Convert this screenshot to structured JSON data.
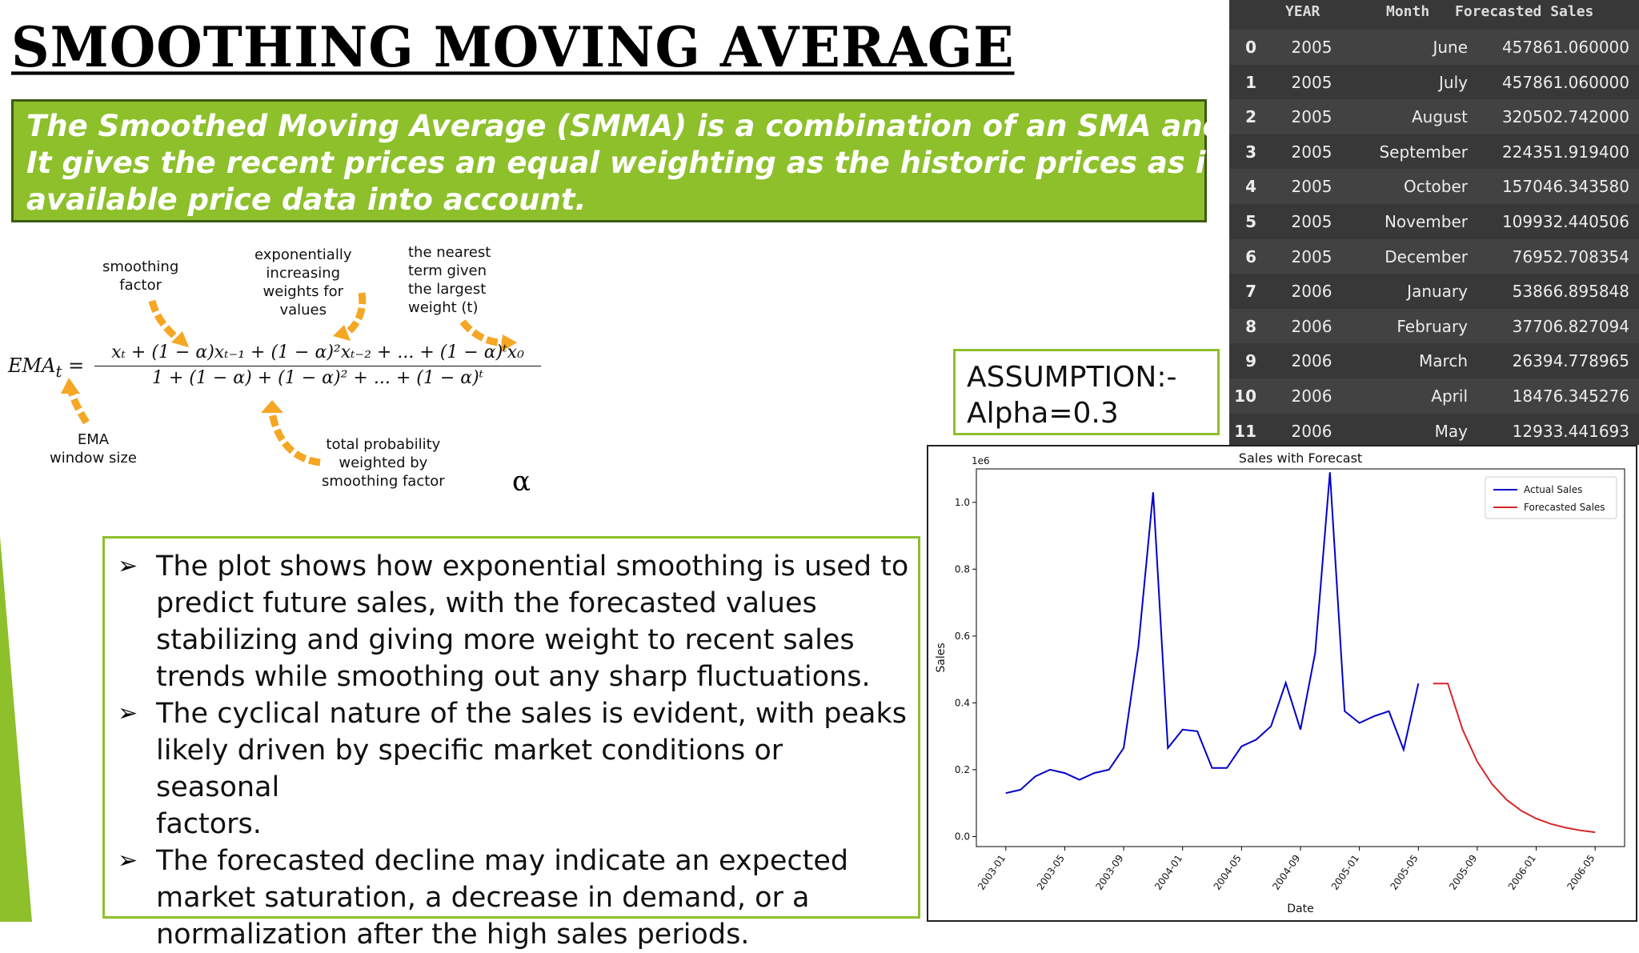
{
  "title": "SMOOTHING MOVING AVERAGE",
  "intro": {
    "lines": [
      "The Smoothed Moving Average (SMMA) is a combination of an SMA and an EMA.",
      "It gives the recent prices an equal weighting as the historic prices as it takes all",
      "available price data into account."
    ]
  },
  "formula": {
    "lhs": "EMA",
    "lhs_sub": "t",
    "numerator": "x",
    "numerator_full": "xₜ + (1 − α)xₜ₋₁ + (1 − α)²xₜ₋₂ + ... + (1 − α)ᵗx₀",
    "denominator_full": "1 + (1 − α) + (1 − α)² + ... + (1 − α)ᵗ",
    "alpha_symbol": "α",
    "annotations": {
      "smoothing_factor": [
        "smoothing",
        "factor"
      ],
      "exponential_weights": [
        "exponentially",
        "increasing",
        "weights for",
        "values"
      ],
      "nearest_term": [
        "the nearest",
        "term given",
        "the largest",
        "weight (t)"
      ],
      "ema_window": [
        "EMA",
        "window size"
      ],
      "total_probability": [
        "total probability",
        "weighted by",
        "smoothing factor"
      ]
    },
    "arrow_color": "#f5a623"
  },
  "assumption": {
    "line1": "ASSUMPTION:-",
    "line2": "Alpha=0.3"
  },
  "bullets": [
    "The plot shows how exponential smoothing is used to predict future sales, with the forecasted values stabilizing and giving more weight to recent sales trends while smoothing out any sharp fluctuations.",
    "The cyclical nature of the sales is evident, with peaks likely driven by specific market conditions or seasonal factors.",
    "The forecasted decline may indicate an expected market saturation, a decrease in demand, or a normalization after the high sales periods."
  ],
  "bullet_lines": [
    [
      "The plot shows how exponential smoothing is used to",
      "predict future sales, with the forecasted values",
      "stabilizing and giving more weight to recent sales",
      "trends while smoothing out any sharp fluctuations."
    ],
    [
      "The cyclical nature of the sales is evident, with peaks",
      "likely driven by specific market conditions or seasonal",
      "factors."
    ],
    [
      "The forecasted decline may indicate an expected",
      "market saturation, a decrease in demand, or a",
      "normalization after the high sales periods."
    ]
  ],
  "bullet_marker": "➢",
  "table": {
    "headers": [
      "YEAR",
      "Month",
      "Forecasted Sales"
    ],
    "rows": [
      {
        "idx": "0",
        "year": "2005",
        "month": "June",
        "forecast": "457861.060000"
      },
      {
        "idx": "1",
        "year": "2005",
        "month": "July",
        "forecast": "457861.060000"
      },
      {
        "idx": "2",
        "year": "2005",
        "month": "August",
        "forecast": "320502.742000"
      },
      {
        "idx": "3",
        "year": "2005",
        "month": "September",
        "forecast": "224351.919400"
      },
      {
        "idx": "4",
        "year": "2005",
        "month": "October",
        "forecast": "157046.343580"
      },
      {
        "idx": "5",
        "year": "2005",
        "month": "November",
        "forecast": "109932.440506"
      },
      {
        "idx": "6",
        "year": "2005",
        "month": "December",
        "forecast": "76952.708354"
      },
      {
        "idx": "7",
        "year": "2006",
        "month": "January",
        "forecast": "53866.895848"
      },
      {
        "idx": "8",
        "year": "2006",
        "month": "February",
        "forecast": "37706.827094"
      },
      {
        "idx": "9",
        "year": "2006",
        "month": "March",
        "forecast": "26394.778965"
      },
      {
        "idx": "10",
        "year": "2006",
        "month": "April",
        "forecast": "18476.345276"
      },
      {
        "idx": "11",
        "year": "2006",
        "month": "May",
        "forecast": "12933.441693"
      }
    ]
  },
  "colors": {
    "accent_green": "#8dc02b",
    "dark_green": "#3c5a12",
    "table_bg": "#383838",
    "table_alt": "#424242",
    "actual": "#0000cc",
    "forecast": "#d62728"
  },
  "chart_data": {
    "type": "line",
    "title": "Sales with Forecast",
    "xlabel": "Date",
    "ylabel": "Sales",
    "y_multiplier_label": "1e6",
    "ylim": [
      -0.03,
      1.1
    ],
    "yticks": [
      0.0,
      0.2,
      0.4,
      0.6,
      0.8,
      1.0
    ],
    "ytick_labels": [
      "0.0",
      "0.2",
      "0.4",
      "0.6",
      "0.8",
      "1.0"
    ],
    "xlim": [
      "2002-11",
      "2006-07"
    ],
    "xticks": [
      "2003-01",
      "2003-05",
      "2003-09",
      "2004-01",
      "2004-05",
      "2004-09",
      "2005-01",
      "2005-05",
      "2005-09",
      "2006-01",
      "2006-05"
    ],
    "legend_position": "top-right",
    "grid": false,
    "series": [
      {
        "name": "Actual Sales",
        "color": "#0000cc",
        "x": [
          "2003-01",
          "2003-02",
          "2003-03",
          "2003-04",
          "2003-05",
          "2003-06",
          "2003-07",
          "2003-08",
          "2003-09",
          "2003-10",
          "2003-11",
          "2003-12",
          "2004-01",
          "2004-02",
          "2004-03",
          "2004-04",
          "2004-05",
          "2004-06",
          "2004-07",
          "2004-08",
          "2004-09",
          "2004-10",
          "2004-11",
          "2004-12",
          "2005-01",
          "2005-02",
          "2005-03",
          "2005-04",
          "2005-05"
        ],
        "values": [
          0.13,
          0.14,
          0.18,
          0.2,
          0.19,
          0.17,
          0.19,
          0.2,
          0.265,
          0.57,
          1.03,
          0.265,
          0.32,
          0.315,
          0.205,
          0.205,
          0.27,
          0.29,
          0.33,
          0.46,
          0.32,
          0.55,
          1.09,
          0.375,
          0.34,
          0.36,
          0.375,
          0.26,
          0.458
        ]
      },
      {
        "name": "Forecasted Sales",
        "color": "#d62728",
        "x": [
          "2005-06",
          "2005-07",
          "2005-08",
          "2005-09",
          "2005-10",
          "2005-11",
          "2005-12",
          "2006-01",
          "2006-02",
          "2006-03",
          "2006-04",
          "2006-05"
        ],
        "values": [
          0.457861,
          0.457861,
          0.320503,
          0.224352,
          0.157046,
          0.109932,
          0.076953,
          0.053867,
          0.037707,
          0.026395,
          0.018476,
          0.012933
        ]
      }
    ]
  }
}
